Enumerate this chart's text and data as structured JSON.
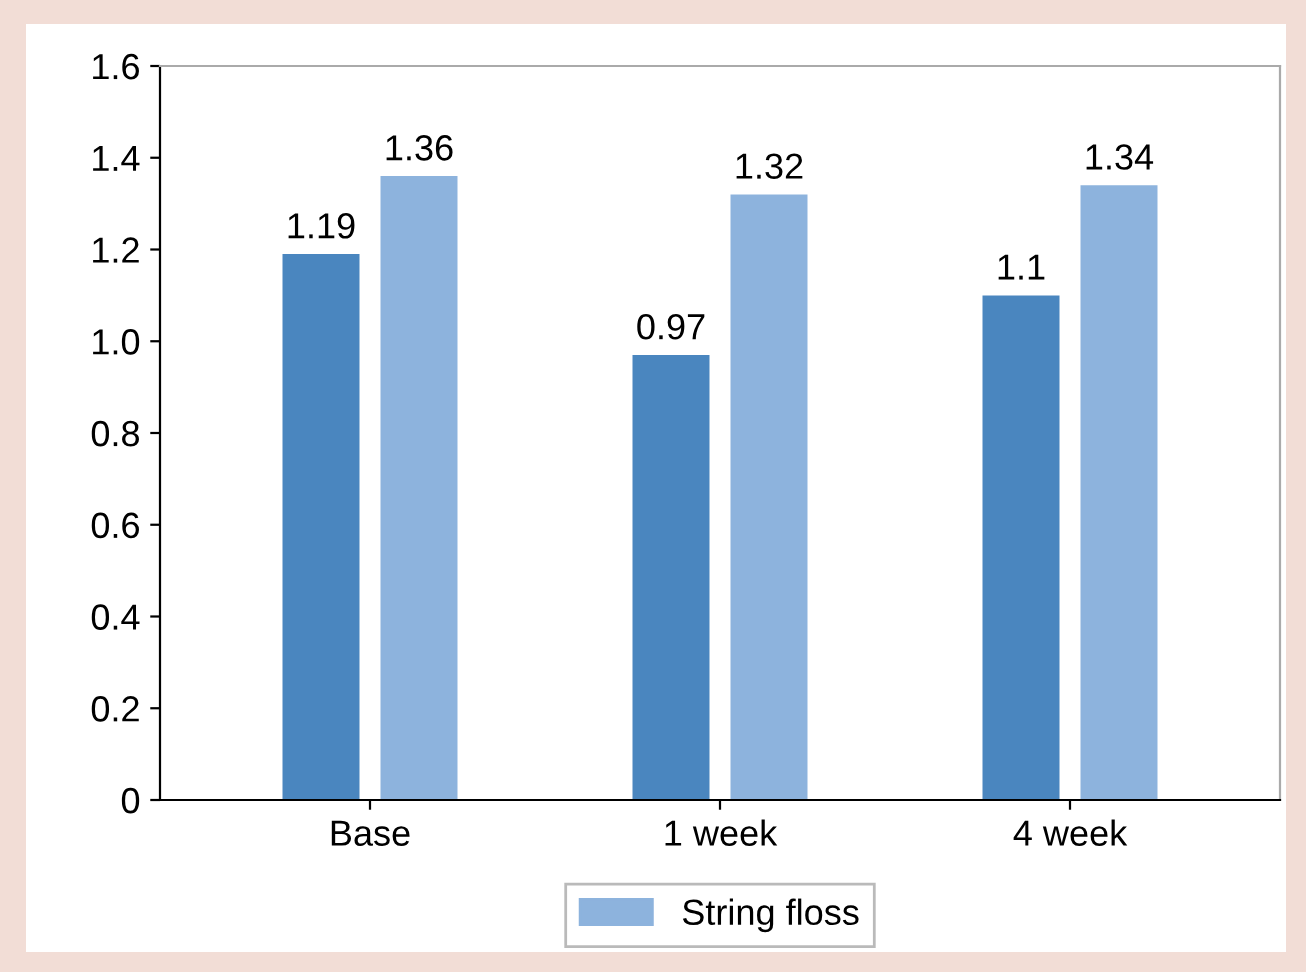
{
  "chart_data": {
    "type": "bar",
    "categories": [
      "Base",
      "1 week",
      "4 week"
    ],
    "series": [
      {
        "color": "#4a86bf",
        "values": [
          1.19,
          0.97,
          1.1
        ]
      },
      {
        "name": "String floss",
        "color": "#8db3dd",
        "values": [
          1.36,
          1.32,
          1.34
        ]
      }
    ],
    "ylim": [
      0,
      1.6
    ],
    "yticks": [
      0,
      0.2,
      0.4,
      0.6,
      0.8,
      {
        "value": 1,
        "label": "1.0"
      },
      1.2,
      1.4,
      1.6
    ],
    "data_labels": true,
    "grid": false,
    "legend": "bottom"
  }
}
